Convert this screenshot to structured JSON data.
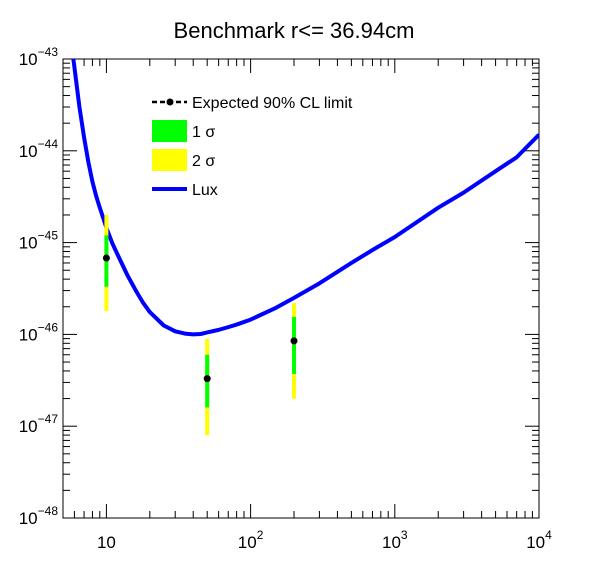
{
  "chart_data": {
    "type": "scatter",
    "title": "Benchmark r<= 36.94cm",
    "xlabel": "",
    "ylabel": "",
    "x_scale": "log",
    "y_scale": "log",
    "xlim": [
      5,
      10000
    ],
    "ylim": [
      1e-48,
      1e-43
    ],
    "grid": false,
    "legend_position": "upper-center",
    "x_ticks": [
      {
        "value": 10,
        "base": "10",
        "exp": ""
      },
      {
        "value": 100,
        "base": "10",
        "exp": "2"
      },
      {
        "value": 1000,
        "base": "10",
        "exp": "3"
      },
      {
        "value": 10000,
        "base": "10",
        "exp": "4"
      }
    ],
    "y_ticks": [
      {
        "value": 1e-48,
        "base": "10",
        "exp": "−48"
      },
      {
        "value": 1e-47,
        "base": "10",
        "exp": "−47"
      },
      {
        "value": 1e-46,
        "base": "10",
        "exp": "−46"
      },
      {
        "value": 1e-45,
        "base": "10",
        "exp": "−45"
      },
      {
        "value": 1e-44,
        "base": "10",
        "exp": "−44"
      },
      {
        "value": 1e-43,
        "base": "10",
        "exp": "−43"
      }
    ],
    "legend": [
      {
        "label": "Expected 90% CL limit",
        "kind": "marker-line",
        "color": "#000000"
      },
      {
        "label": "1 σ",
        "kind": "box",
        "color": "#00ff00"
      },
      {
        "label": "2 σ",
        "kind": "box",
        "color": "#ffff00"
      },
      {
        "label": "Lux",
        "kind": "line",
        "color": "#0000ff"
      }
    ],
    "series": [
      {
        "name": "Expected 90% CL limit",
        "color": "#000000",
        "points": [
          {
            "x": 10,
            "y": 6.8e-46,
            "sigma1_low": 3.3e-46,
            "sigma1_high": 1.2e-45,
            "sigma2_low": 1.8e-46,
            "sigma2_high": 2e-45
          },
          {
            "x": 50,
            "y": 3.3e-47,
            "sigma1_low": 1.6e-47,
            "sigma1_high": 6e-47,
            "sigma2_low": 8e-48,
            "sigma2_high": 9e-47
          },
          {
            "x": 200,
            "y": 8.5e-47,
            "sigma1_low": 3.7e-47,
            "sigma1_high": 1.55e-46,
            "sigma2_low": 2e-47,
            "sigma2_high": 2.2e-46
          }
        ]
      },
      {
        "name": "Lux",
        "color": "#0000ff",
        "x": [
          5.9,
          6.5,
          7,
          7.5,
          8,
          8.5,
          9,
          10,
          11,
          12,
          14,
          16,
          18,
          20,
          25,
          30,
          35,
          40,
          45,
          50,
          60,
          70,
          80,
          100,
          150,
          200,
          300,
          500,
          700,
          1000,
          2000,
          3000,
          5000,
          7000,
          10000
        ],
        "y": [
          1e-43,
          3e-44,
          1.4e-44,
          7.5e-45,
          4.6e-45,
          3.2e-45,
          2.4e-45,
          1.45e-45,
          9.8e-46,
          7.3e-46,
          4.4e-46,
          3e-46,
          2.2e-46,
          1.75e-46,
          1.25e-46,
          1.08e-46,
          1.02e-46,
          1e-46,
          1.01e-46,
          1.05e-46,
          1.12e-46,
          1.2e-46,
          1.28e-46,
          1.45e-46,
          1.95e-46,
          2.5e-46,
          3.6e-46,
          6e-46,
          8.3e-46,
          1.15e-45,
          2.4e-45,
          3.5e-45,
          6e-45,
          8.5e-45,
          1.5e-44
        ]
      }
    ]
  }
}
